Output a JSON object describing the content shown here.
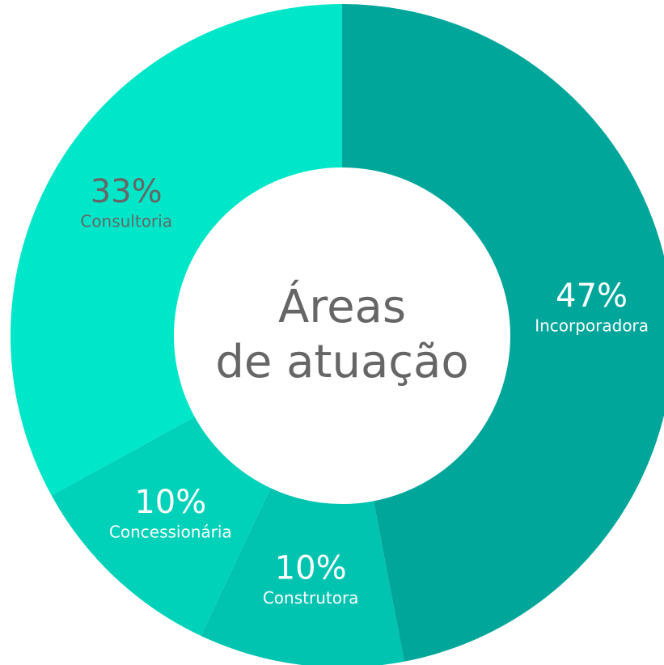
{
  "chart_data": {
    "type": "donut",
    "title": [
      "Áreas",
      "de atuação"
    ],
    "categories": [
      "Incorporadora",
      "Construtora",
      "Concessionária",
      "Consultoria"
    ],
    "values": [
      47,
      10,
      10,
      33
    ],
    "value_labels": [
      "47%",
      "10%",
      "10%",
      "33%"
    ],
    "colors": [
      "#00a69a",
      "#00c3b0",
      "#00d1b9",
      "#00e6c9"
    ],
    "label_colors": [
      "#ffffff",
      "#ffffff",
      "#ffffff",
      "#666666"
    ]
  }
}
